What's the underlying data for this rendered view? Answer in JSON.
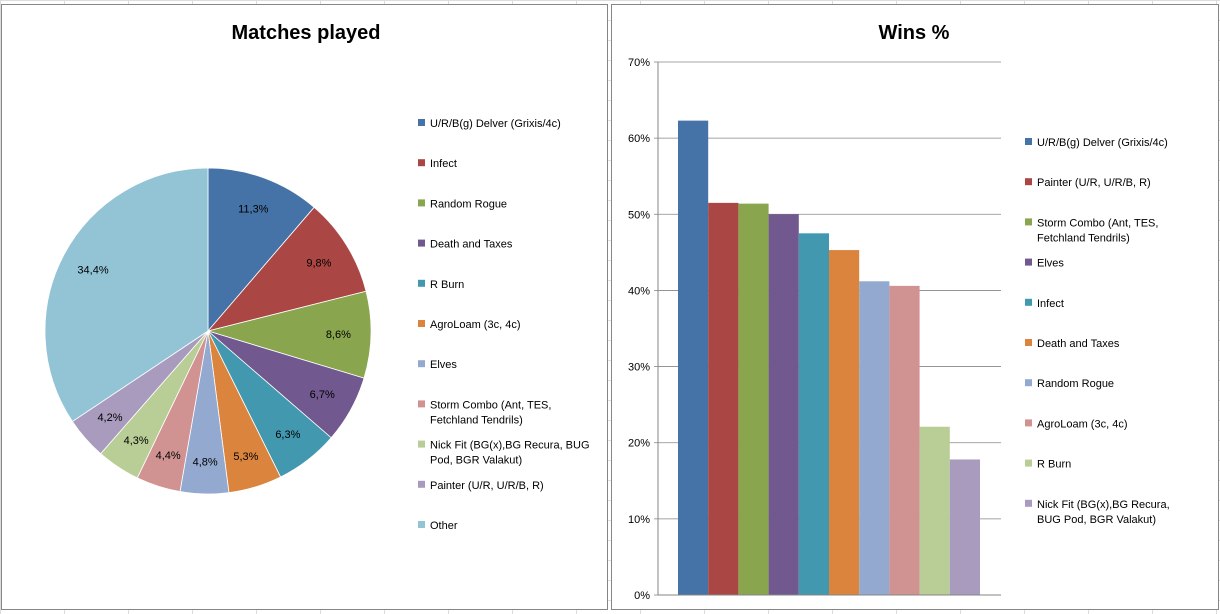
{
  "chart_data": [
    {
      "type": "pie",
      "title": "Matches played",
      "categories": [
        "U/R/B(g) Delver (Grixis/4c)",
        "Infect",
        "Random Rogue",
        "Death and Taxes",
        "R Burn",
        "AgroLoam (3c, 4c)",
        "Elves",
        "Storm Combo (Ant, TES, Fetchland Tendrils)",
        "Nick Fit (BG(x),BG Recura, BUG Pod, BGR Valakut)",
        "Painter (U/R, U/R/B, R)",
        "Other"
      ],
      "values": [
        11.3,
        9.8,
        8.6,
        6.7,
        6.3,
        5.3,
        4.8,
        4.4,
        4.3,
        4.2,
        34.4
      ],
      "labels": [
        "11,3%",
        "9,8%",
        "8,6%",
        "6,7%",
        "6,3%",
        "5,3%",
        "4,8%",
        "4,4%",
        "4,3%",
        "4,2%",
        "34,4%"
      ],
      "colors": [
        "#4572A7",
        "#AA4643",
        "#89A54E",
        "#71588F",
        "#4198AF",
        "#DB843D",
        "#93A9CF",
        "#D19392",
        "#B9CD96",
        "#A99BBD",
        "#92C4D6"
      ],
      "legend_position": "right"
    },
    {
      "type": "bar",
      "title": "Wins %",
      "categories": [
        "U/R/B(g) Delver (Grixis/4c)",
        "Painter (U/R, U/R/B, R)",
        "Storm Combo (Ant, TES, Fetchland Tendrils)",
        "Elves",
        "Infect",
        "Death and Taxes",
        "Random Rogue",
        "AgroLoam (3c, 4c)",
        "R Burn",
        "Nick Fit (BG(x),BG Recura, BUG Pod, BGR Valakut)"
      ],
      "values": [
        62.3,
        51.5,
        51.4,
        50.0,
        47.5,
        45.3,
        41.2,
        40.6,
        22.1,
        17.8
      ],
      "colors": [
        "#4572A7",
        "#AA4643",
        "#89A54E",
        "#71588F",
        "#4198AF",
        "#DB843D",
        "#93A9CF",
        "#D19392",
        "#B9CD96",
        "#A99BBD"
      ],
      "ylim": [
        0,
        70
      ],
      "ytick_labels": [
        "0%",
        "10%",
        "20%",
        "30%",
        "40%",
        "50%",
        "60%",
        "70%"
      ],
      "grid": true,
      "legend_position": "right"
    }
  ]
}
